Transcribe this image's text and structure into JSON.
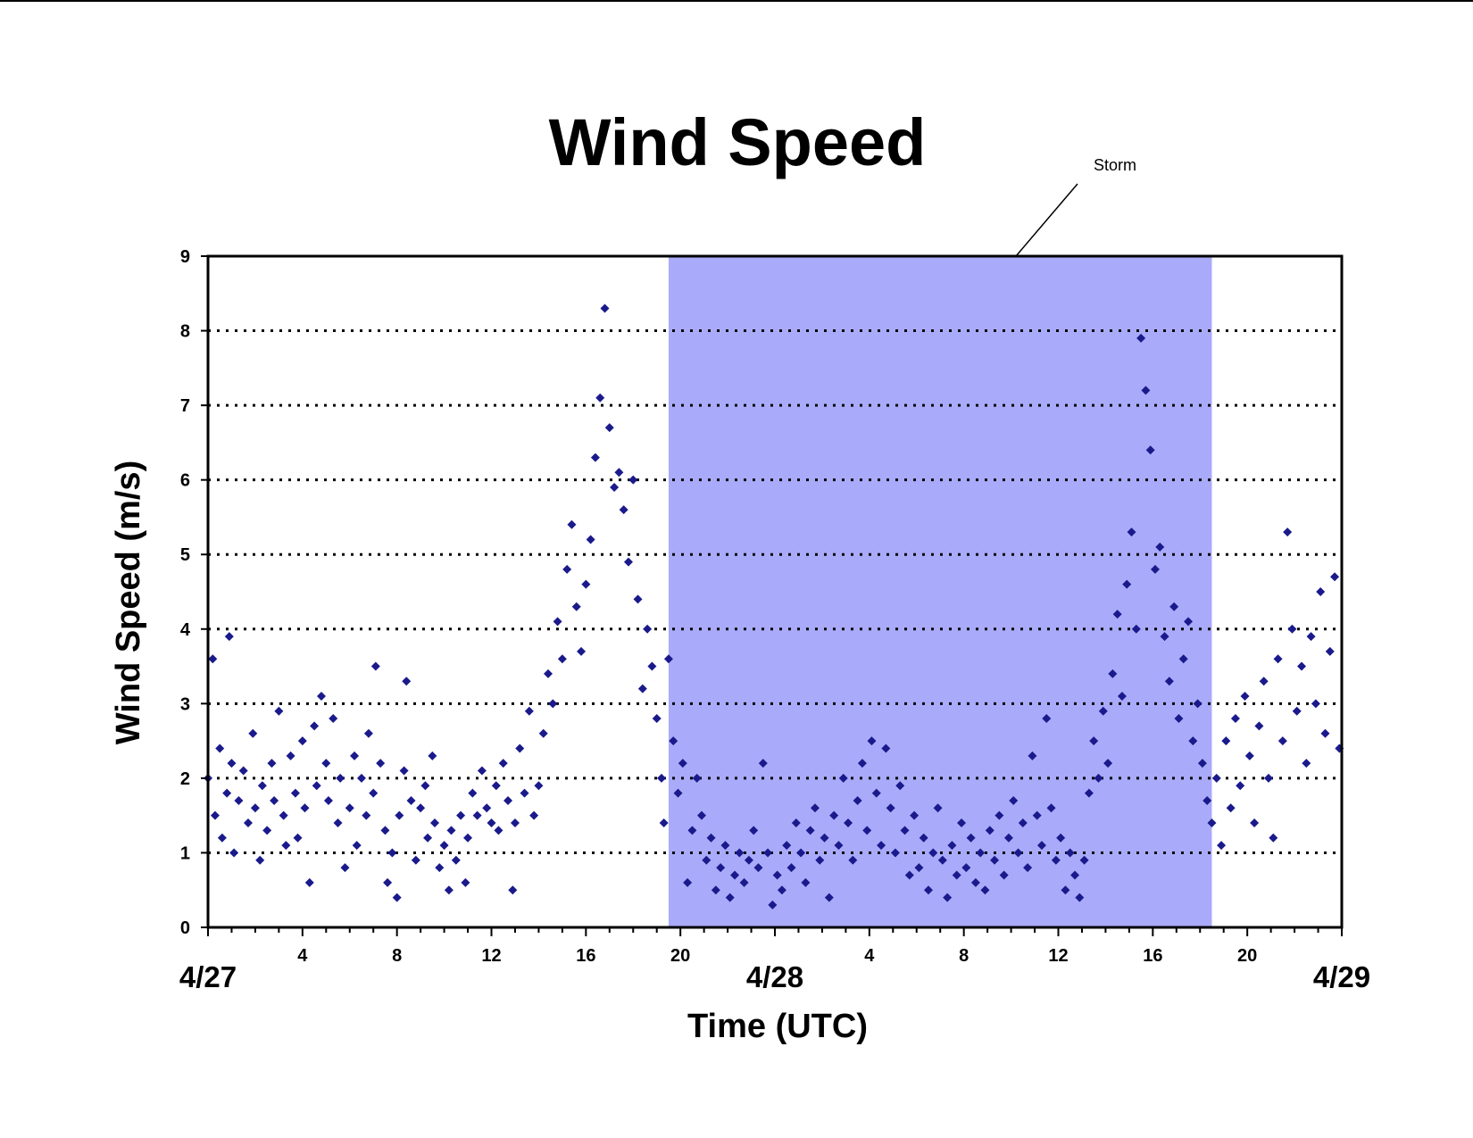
{
  "chart_data": {
    "type": "scatter",
    "title": "Wind Speed",
    "xlabel": "Time (UTC)",
    "ylabel": "Wind Speed (m/s)",
    "ylim": [
      0,
      9
    ],
    "yticks": [
      "0",
      "1",
      "2",
      "3",
      "4",
      "5",
      "6",
      "7",
      "8",
      "9"
    ],
    "xlim_hours": [
      0,
      48
    ],
    "x_unit": "hours since 4/27 00:00 UTC",
    "xtick_labels": [
      {
        "hour": 4,
        "label": "4"
      },
      {
        "hour": 8,
        "label": "8"
      },
      {
        "hour": 12,
        "label": "12"
      },
      {
        "hour": 16,
        "label": "16"
      },
      {
        "hour": 20,
        "label": "20"
      },
      {
        "hour": 28,
        "label": "4"
      },
      {
        "hour": 32,
        "label": "8"
      },
      {
        "hour": 36,
        "label": "12"
      },
      {
        "hour": 40,
        "label": "16"
      },
      {
        "hour": 44,
        "label": "20"
      }
    ],
    "date_labels": [
      {
        "hour": 0,
        "label": "4/27"
      },
      {
        "hour": 24,
        "label": "4/28"
      },
      {
        "hour": 48,
        "label": "4/29"
      }
    ],
    "grid": "horizontal dotted",
    "marker": "diamond",
    "series_color": "#1a1a8c",
    "shaded_region": {
      "start_hour": 19.5,
      "end_hour": 42.5,
      "color": "#a9abfa",
      "label": "Storm"
    },
    "points": [
      [
        0,
        2.0
      ],
      [
        0.2,
        3.6
      ],
      [
        0.3,
        1.5
      ],
      [
        0.5,
        2.4
      ],
      [
        0.6,
        1.2
      ],
      [
        0.8,
        1.8
      ],
      [
        0.9,
        3.9
      ],
      [
        1.0,
        2.2
      ],
      [
        1.1,
        1.0
      ],
      [
        1.3,
        1.7
      ],
      [
        1.5,
        2.1
      ],
      [
        1.7,
        1.4
      ],
      [
        1.9,
        2.6
      ],
      [
        2.0,
        1.6
      ],
      [
        2.2,
        0.9
      ],
      [
        2.3,
        1.9
      ],
      [
        2.5,
        1.3
      ],
      [
        2.7,
        2.2
      ],
      [
        2.8,
        1.7
      ],
      [
        3.0,
        2.9
      ],
      [
        3.2,
        1.5
      ],
      [
        3.3,
        1.1
      ],
      [
        3.5,
        2.3
      ],
      [
        3.7,
        1.8
      ],
      [
        3.8,
        1.2
      ],
      [
        4.0,
        2.5
      ],
      [
        4.1,
        1.6
      ],
      [
        4.3,
        0.6
      ],
      [
        4.5,
        2.7
      ],
      [
        4.6,
        1.9
      ],
      [
        4.8,
        3.1
      ],
      [
        5.0,
        2.2
      ],
      [
        5.1,
        1.7
      ],
      [
        5.3,
        2.8
      ],
      [
        5.5,
        1.4
      ],
      [
        5.6,
        2.0
      ],
      [
        5.8,
        0.8
      ],
      [
        6.0,
        1.6
      ],
      [
        6.2,
        2.3
      ],
      [
        6.3,
        1.1
      ],
      [
        6.5,
        2.0
      ],
      [
        6.7,
        1.5
      ],
      [
        6.8,
        2.6
      ],
      [
        7.0,
        1.8
      ],
      [
        7.1,
        3.5
      ],
      [
        7.3,
        2.2
      ],
      [
        7.5,
        1.3
      ],
      [
        7.6,
        0.6
      ],
      [
        7.8,
        1.0
      ],
      [
        8.0,
        0.4
      ],
      [
        8.1,
        1.5
      ],
      [
        8.3,
        2.1
      ],
      [
        8.4,
        3.3
      ],
      [
        8.6,
        1.7
      ],
      [
        8.8,
        0.9
      ],
      [
        9.0,
        1.6
      ],
      [
        9.2,
        1.9
      ],
      [
        9.3,
        1.2
      ],
      [
        9.5,
        2.3
      ],
      [
        9.6,
        1.4
      ],
      [
        9.8,
        0.8
      ],
      [
        10.0,
        1.1
      ],
      [
        10.2,
        0.5
      ],
      [
        10.3,
        1.3
      ],
      [
        10.5,
        0.9
      ],
      [
        10.7,
        1.5
      ],
      [
        10.9,
        0.6
      ],
      [
        11.0,
        1.2
      ],
      [
        11.2,
        1.8
      ],
      [
        11.4,
        1.5
      ],
      [
        11.6,
        2.1
      ],
      [
        11.8,
        1.6
      ],
      [
        12.0,
        1.4
      ],
      [
        12.2,
        1.9
      ],
      [
        12.3,
        1.3
      ],
      [
        12.5,
        2.2
      ],
      [
        12.7,
        1.7
      ],
      [
        12.9,
        0.5
      ],
      [
        13.0,
        1.4
      ],
      [
        13.2,
        2.4
      ],
      [
        13.4,
        1.8
      ],
      [
        13.6,
        2.9
      ],
      [
        13.8,
        1.5
      ],
      [
        14.0,
        1.9
      ],
      [
        14.2,
        2.6
      ],
      [
        14.4,
        3.4
      ],
      [
        14.6,
        3.0
      ],
      [
        14.8,
        4.1
      ],
      [
        15.0,
        3.6
      ],
      [
        15.2,
        4.8
      ],
      [
        15.4,
        5.4
      ],
      [
        15.6,
        4.3
      ],
      [
        15.8,
        3.7
      ],
      [
        16.0,
        4.6
      ],
      [
        16.2,
        5.2
      ],
      [
        16.4,
        6.3
      ],
      [
        16.6,
        7.1
      ],
      [
        16.8,
        8.3
      ],
      [
        17.0,
        6.7
      ],
      [
        17.2,
        5.9
      ],
      [
        17.4,
        6.1
      ],
      [
        17.6,
        5.6
      ],
      [
        17.8,
        4.9
      ],
      [
        18.0,
        6.0
      ],
      [
        18.2,
        4.4
      ],
      [
        18.4,
        3.2
      ],
      [
        18.6,
        4.0
      ],
      [
        18.8,
        3.5
      ],
      [
        19.0,
        2.8
      ],
      [
        19.2,
        2.0
      ],
      [
        19.3,
        1.4
      ],
      [
        19.5,
        3.6
      ],
      [
        19.7,
        2.5
      ],
      [
        19.9,
        1.8
      ],
      [
        20.1,
        2.2
      ],
      [
        20.3,
        0.6
      ],
      [
        20.5,
        1.3
      ],
      [
        20.7,
        2.0
      ],
      [
        20.9,
        1.5
      ],
      [
        21.1,
        0.9
      ],
      [
        21.3,
        1.2
      ],
      [
        21.5,
        0.5
      ],
      [
        21.7,
        0.8
      ],
      [
        21.9,
        1.1
      ],
      [
        22.1,
        0.4
      ],
      [
        22.3,
        0.7
      ],
      [
        22.5,
        1.0
      ],
      [
        22.7,
        0.6
      ],
      [
        22.9,
        0.9
      ],
      [
        23.1,
        1.3
      ],
      [
        23.3,
        0.8
      ],
      [
        23.5,
        2.2
      ],
      [
        23.7,
        1.0
      ],
      [
        23.9,
        0.3
      ],
      [
        24.1,
        0.7
      ],
      [
        24.3,
        0.5
      ],
      [
        24.5,
        1.1
      ],
      [
        24.7,
        0.8
      ],
      [
        24.9,
        1.4
      ],
      [
        25.1,
        1.0
      ],
      [
        25.3,
        0.6
      ],
      [
        25.5,
        1.3
      ],
      [
        25.7,
        1.6
      ],
      [
        25.9,
        0.9
      ],
      [
        26.1,
        1.2
      ],
      [
        26.3,
        0.4
      ],
      [
        26.5,
        1.5
      ],
      [
        26.7,
        1.1
      ],
      [
        26.9,
        2.0
      ],
      [
        27.1,
        1.4
      ],
      [
        27.3,
        0.9
      ],
      [
        27.5,
        1.7
      ],
      [
        27.7,
        2.2
      ],
      [
        27.9,
        1.3
      ],
      [
        28.1,
        2.5
      ],
      [
        28.3,
        1.8
      ],
      [
        28.5,
        1.1
      ],
      [
        28.7,
        2.4
      ],
      [
        28.9,
        1.6
      ],
      [
        29.1,
        1.0
      ],
      [
        29.3,
        1.9
      ],
      [
        29.5,
        1.3
      ],
      [
        29.7,
        0.7
      ],
      [
        29.9,
        1.5
      ],
      [
        30.1,
        0.8
      ],
      [
        30.3,
        1.2
      ],
      [
        30.5,
        0.5
      ],
      [
        30.7,
        1.0
      ],
      [
        30.9,
        1.6
      ],
      [
        31.1,
        0.9
      ],
      [
        31.3,
        0.4
      ],
      [
        31.5,
        1.1
      ],
      [
        31.7,
        0.7
      ],
      [
        31.9,
        1.4
      ],
      [
        32.1,
        0.8
      ],
      [
        32.3,
        1.2
      ],
      [
        32.5,
        0.6
      ],
      [
        32.7,
        1.0
      ],
      [
        32.9,
        0.5
      ],
      [
        33.1,
        1.3
      ],
      [
        33.3,
        0.9
      ],
      [
        33.5,
        1.5
      ],
      [
        33.7,
        0.7
      ],
      [
        33.9,
        1.2
      ],
      [
        34.1,
        1.7
      ],
      [
        34.3,
        1.0
      ],
      [
        34.5,
        1.4
      ],
      [
        34.7,
        0.8
      ],
      [
        34.9,
        2.3
      ],
      [
        35.1,
        1.5
      ],
      [
        35.3,
        1.1
      ],
      [
        35.5,
        2.8
      ],
      [
        35.7,
        1.6
      ],
      [
        35.9,
        0.9
      ],
      [
        36.1,
        1.2
      ],
      [
        36.3,
        0.5
      ],
      [
        36.5,
        1.0
      ],
      [
        36.7,
        0.7
      ],
      [
        36.9,
        0.4
      ],
      [
        37.1,
        0.9
      ],
      [
        37.3,
        1.8
      ],
      [
        37.5,
        2.5
      ],
      [
        37.7,
        2.0
      ],
      [
        37.9,
        2.9
      ],
      [
        38.1,
        2.2
      ],
      [
        38.3,
        3.4
      ],
      [
        38.5,
        4.2
      ],
      [
        38.7,
        3.1
      ],
      [
        38.9,
        4.6
      ],
      [
        39.1,
        5.3
      ],
      [
        39.3,
        4.0
      ],
      [
        39.5,
        7.9
      ],
      [
        39.7,
        7.2
      ],
      [
        39.9,
        6.4
      ],
      [
        40.1,
        4.8
      ],
      [
        40.3,
        5.1
      ],
      [
        40.5,
        3.9
      ],
      [
        40.7,
        3.3
      ],
      [
        40.9,
        4.3
      ],
      [
        41.1,
        2.8
      ],
      [
        41.3,
        3.6
      ],
      [
        41.5,
        4.1
      ],
      [
        41.7,
        2.5
      ],
      [
        41.9,
        3.0
      ],
      [
        42.1,
        2.2
      ],
      [
        42.3,
        1.7
      ],
      [
        42.5,
        1.4
      ],
      [
        42.7,
        2.0
      ],
      [
        42.9,
        1.1
      ],
      [
        43.1,
        2.5
      ],
      [
        43.3,
        1.6
      ],
      [
        43.5,
        2.8
      ],
      [
        43.7,
        1.9
      ],
      [
        43.9,
        3.1
      ],
      [
        44.1,
        2.3
      ],
      [
        44.3,
        1.4
      ],
      [
        44.5,
        2.7
      ],
      [
        44.7,
        3.3
      ],
      [
        44.9,
        2.0
      ],
      [
        45.1,
        1.2
      ],
      [
        45.3,
        3.6
      ],
      [
        45.5,
        2.5
      ],
      [
        45.7,
        5.3
      ],
      [
        45.9,
        4.0
      ],
      [
        46.1,
        2.9
      ],
      [
        46.3,
        3.5
      ],
      [
        46.5,
        2.2
      ],
      [
        46.7,
        3.9
      ],
      [
        46.9,
        3.0
      ],
      [
        47.1,
        4.5
      ],
      [
        47.3,
        2.6
      ],
      [
        47.5,
        3.7
      ],
      [
        47.7,
        4.7
      ],
      [
        47.9,
        2.4
      ]
    ]
  }
}
